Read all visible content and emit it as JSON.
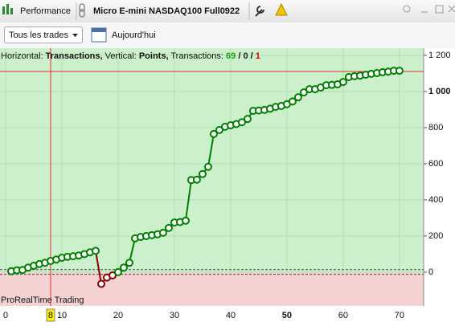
{
  "toolbar": {
    "tab": "Performance",
    "instrument": "Micro E-mini NASDAQ100 Full0922",
    "filter": "Tous les trades",
    "period": "Aujourd'hui"
  },
  "chart_data": {
    "type": "line",
    "header": {
      "h_label": "Horizontal:",
      "h_value": "Transactions,",
      "v_label": "Vertical:",
      "v_value": "Points,",
      "t_label": "Transactions:",
      "wins": "69",
      "sep1": "/",
      "even": "0",
      "sep2": "/",
      "losses": "1"
    },
    "watermark": "ProRealTime Trading",
    "x": [
      1,
      2,
      3,
      4,
      5,
      6,
      7,
      8,
      9,
      10,
      11,
      12,
      13,
      14,
      15,
      16,
      17,
      18,
      19,
      20,
      21,
      22,
      23,
      24,
      25,
      26,
      27,
      28,
      29,
      30,
      31,
      32,
      33,
      34,
      35,
      36,
      37,
      38,
      39,
      40,
      41,
      42,
      43,
      44,
      45,
      46,
      47,
      48,
      49,
      50,
      51,
      52,
      53,
      54,
      55,
      56,
      57,
      58,
      59,
      60,
      61,
      62,
      63,
      64,
      65,
      66,
      67,
      68,
      69,
      70
    ],
    "series": [
      {
        "name": "Points",
        "color": "#008000",
        "loss_color": "#8b0000",
        "values": [
          5,
          10,
          12,
          25,
          35,
          45,
          52,
          62,
          70,
          80,
          85,
          88,
          92,
          100,
          110,
          118,
          -65,
          -30,
          -18,
          0,
          25,
          52,
          187,
          195,
          200,
          205,
          210,
          218,
          245,
          275,
          277,
          285,
          510,
          512,
          543,
          583,
          765,
          787,
          805,
          813,
          820,
          830,
          848,
          893,
          895,
          898,
          905,
          915,
          920,
          930,
          945,
          968,
          995,
          1013,
          1013,
          1022,
          1035,
          1037,
          1040,
          1053,
          1080,
          1085,
          1088,
          1093,
          1098,
          1102,
          1107,
          1110,
          1115,
          1115
        ]
      }
    ],
    "xlim": [
      -1,
      74.3
    ],
    "ylim": [
      -187,
      1240
    ],
    "xticks": [
      0,
      10,
      20,
      30,
      40,
      {
        "value": 50,
        "label": "50",
        "bold": true
      },
      60,
      70
    ],
    "yticks": [
      0,
      200,
      400,
      600,
      800,
      {
        "value": 1000,
        "label": "1 000",
        "bold": true
      },
      {
        "value": 1200,
        "label": "1 200"
      }
    ],
    "grid": true,
    "hline": 1111,
    "vline": 8,
    "dashed": [
      14,
      -12
    ],
    "colors": {
      "positive": "#ccefcc",
      "negative": "#f5d2d2",
      "grid": "#b5dfb5",
      "crosshair": "#e03030"
    }
  }
}
